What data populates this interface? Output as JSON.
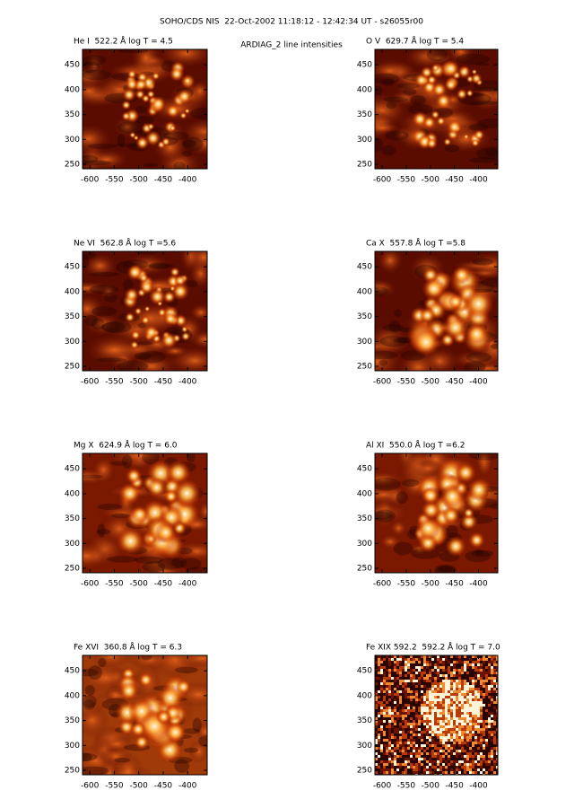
{
  "title": "SOHO/CDS NIS  22-Oct-2002 11:18:12 - 12:42:34 UT - s26055r00",
  "subtitle": "ARDIAG_2 line intensities",
  "chart_data": [
    {
      "type": "image",
      "title": "He I  522.2 Å log T = 4.5",
      "xlim": [
        -615,
        -360
      ],
      "ylim": [
        241,
        481
      ],
      "xticks": [
        -600,
        -550,
        -500,
        -450,
        -400
      ],
      "yticks": [
        250,
        300,
        350,
        400,
        450
      ]
    },
    {
      "type": "image",
      "title": "O V  629.7 Å log T = 5.4",
      "xlim": [
        -615,
        -360
      ],
      "ylim": [
        241,
        481
      ],
      "xticks": [
        -600,
        -550,
        -500,
        -450,
        -400
      ],
      "yticks": [
        250,
        300,
        350,
        400,
        450
      ]
    },
    {
      "type": "image",
      "title": "Ne VI  562.8 Å log T =5.6",
      "xlim": [
        -615,
        -360
      ],
      "ylim": [
        241,
        481
      ],
      "xticks": [
        -600,
        -550,
        -500,
        -450,
        -400
      ],
      "yticks": [
        250,
        300,
        350,
        400,
        450
      ]
    },
    {
      "type": "image",
      "title": "Ca X  557.8 Å log T =5.8",
      "xlim": [
        -615,
        -360
      ],
      "ylim": [
        241,
        481
      ],
      "xticks": [
        -600,
        -550,
        -500,
        -450,
        -400
      ],
      "yticks": [
        250,
        300,
        350,
        400,
        450
      ]
    },
    {
      "type": "image",
      "title": "Mg X  624.9 Å log T = 6.0",
      "xlim": [
        -615,
        -360
      ],
      "ylim": [
        241,
        481
      ],
      "xticks": [
        -600,
        -550,
        -500,
        -450,
        -400
      ],
      "yticks": [
        250,
        300,
        350,
        400,
        450
      ]
    },
    {
      "type": "image",
      "title": "Al XI  550.0 Å log T =6.2",
      "xlim": [
        -615,
        -360
      ],
      "ylim": [
        241,
        481
      ],
      "xticks": [
        -600,
        -550,
        -500,
        -450,
        -400
      ],
      "yticks": [
        250,
        300,
        350,
        400,
        450
      ]
    },
    {
      "type": "image",
      "title": "Fe XVI  360.8 Å log T = 6.3",
      "xlim": [
        -615,
        -360
      ],
      "ylim": [
        241,
        481
      ],
      "xticks": [
        -600,
        -550,
        -500,
        -450,
        -400
      ],
      "yticks": [
        250,
        300,
        350,
        400,
        450
      ]
    },
    {
      "type": "noisy-image",
      "title": "Fe XIX 592.2  592.2 Å log T = 7.0",
      "xlim": [
        -615,
        -360
      ],
      "ylim": [
        241,
        481
      ],
      "xticks": [
        -600,
        -550,
        -500,
        -450,
        -400
      ],
      "yticks": [
        250,
        300,
        350,
        400,
        450
      ]
    }
  ]
}
